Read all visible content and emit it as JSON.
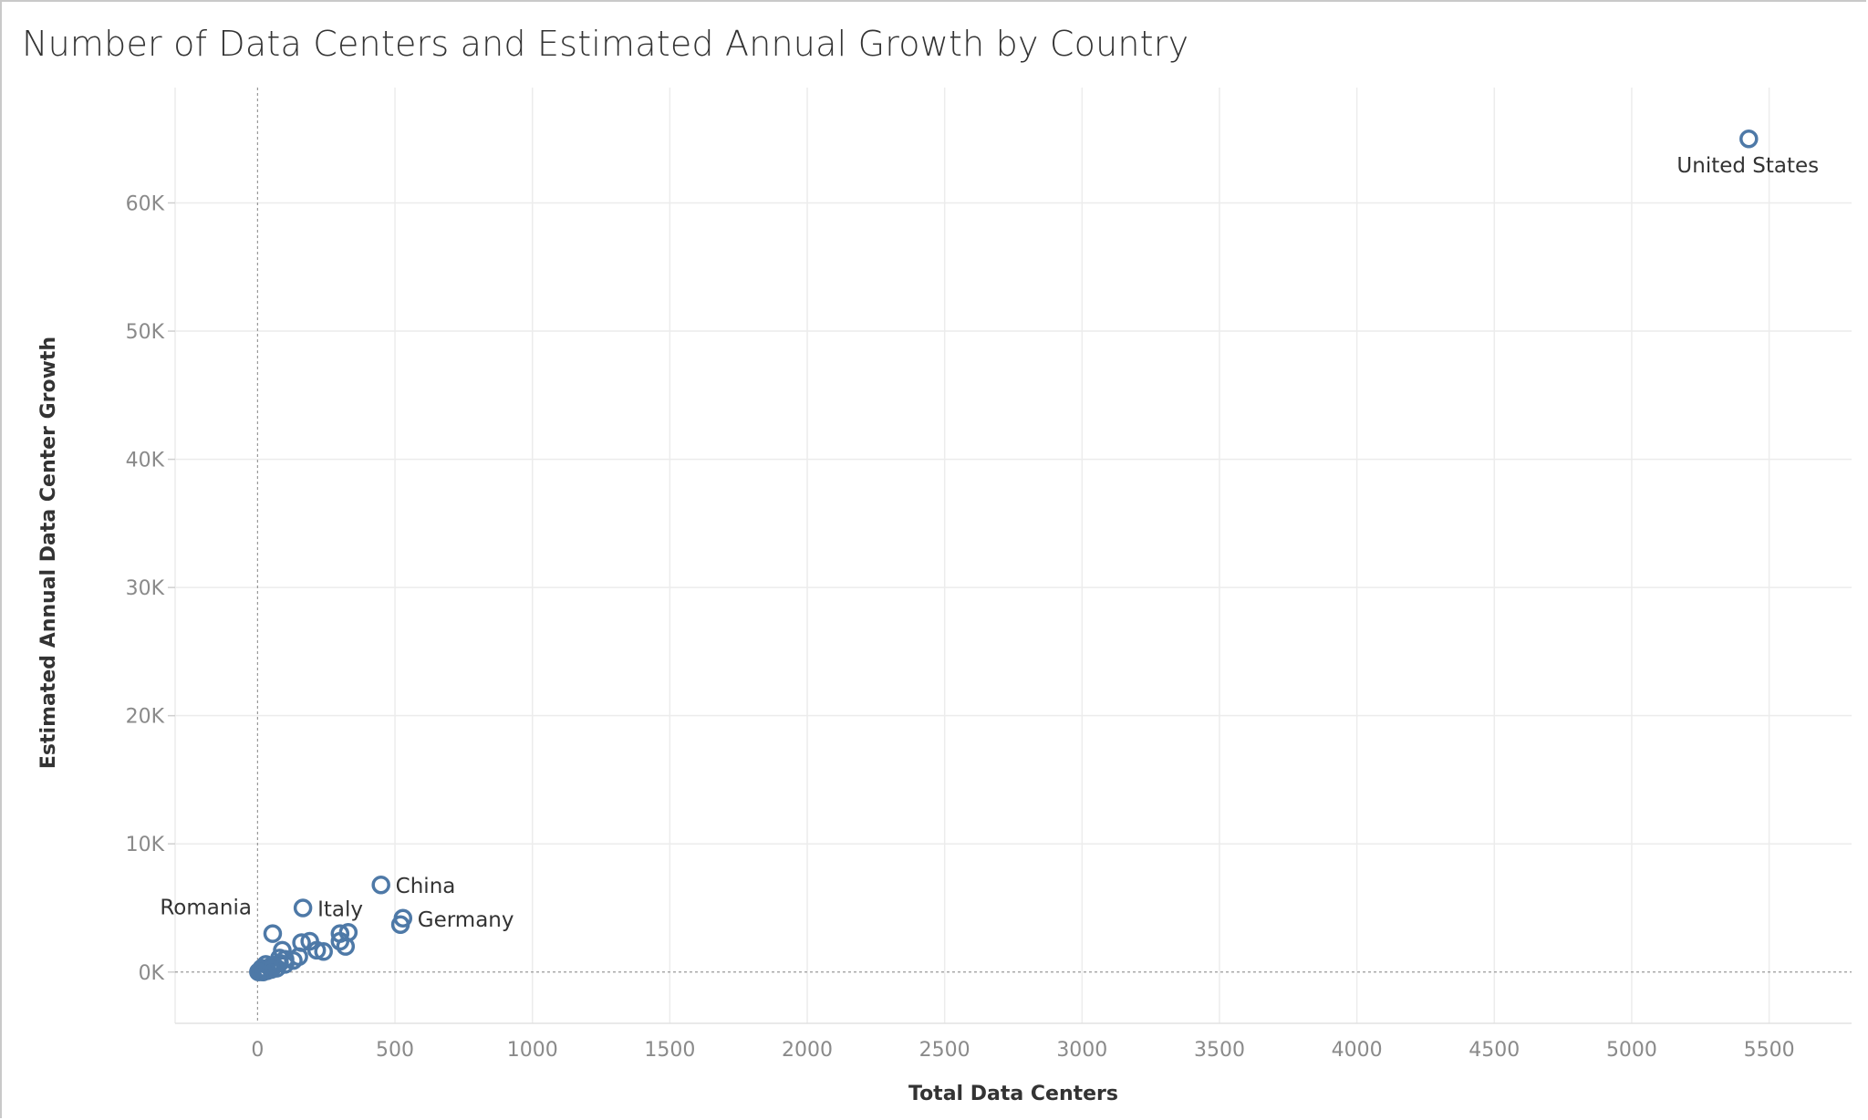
{
  "chart_data": {
    "type": "scatter",
    "title": "Number of Data Centers and Estimated Annual Growth by Country",
    "xlabel": "Total Data Centers",
    "ylabel": "Estimated Annual Data Center Growth",
    "xlim": [
      -300,
      5800
    ],
    "ylim": [
      -4000,
      69000
    ],
    "xticks": [
      0,
      500,
      1000,
      1500,
      2000,
      2500,
      3000,
      3500,
      4000,
      4500,
      5000,
      5500
    ],
    "xtick_labels": [
      "0",
      "500",
      "1000",
      "1500",
      "2000",
      "2500",
      "3000",
      "3500",
      "4000",
      "4500",
      "5000",
      "5500"
    ],
    "yticks": [
      0,
      10000,
      20000,
      30000,
      40000,
      50000,
      60000
    ],
    "ytick_labels": [
      "0K",
      "10K",
      "20K",
      "30K",
      "40K",
      "50K",
      "60K"
    ],
    "grid": true,
    "marker": "open-circle",
    "color": "#4e79a7",
    "points": [
      {
        "x": 5426,
        "y": 65000,
        "label": "United States",
        "label_pos": "below"
      },
      {
        "x": 449,
        "y": 6800,
        "label": "China",
        "label_pos": "right"
      },
      {
        "x": 529,
        "y": 4200,
        "label": "Germany",
        "label_pos": "right"
      },
      {
        "x": 520,
        "y": 3700,
        "label": "",
        "label_pos": ""
      },
      {
        "x": 165,
        "y": 5000,
        "label": "Italy",
        "label_pos": "right"
      },
      {
        "x": 55,
        "y": 3000,
        "label": "Romania",
        "label_pos": "left"
      },
      {
        "x": 330,
        "y": 3100,
        "label": "",
        "label_pos": ""
      },
      {
        "x": 300,
        "y": 3000,
        "label": "",
        "label_pos": ""
      },
      {
        "x": 300,
        "y": 2400,
        "label": "",
        "label_pos": ""
      },
      {
        "x": 320,
        "y": 2000,
        "label": "",
        "label_pos": ""
      },
      {
        "x": 190,
        "y": 2400,
        "label": "",
        "label_pos": ""
      },
      {
        "x": 160,
        "y": 2300,
        "label": "",
        "label_pos": ""
      },
      {
        "x": 240,
        "y": 1600,
        "label": "",
        "label_pos": ""
      },
      {
        "x": 215,
        "y": 1700,
        "label": "",
        "label_pos": ""
      },
      {
        "x": 90,
        "y": 1700,
        "label": "",
        "label_pos": ""
      },
      {
        "x": 150,
        "y": 1200,
        "label": "",
        "label_pos": ""
      },
      {
        "x": 130,
        "y": 900,
        "label": "",
        "label_pos": ""
      },
      {
        "x": 100,
        "y": 1000,
        "label": "",
        "label_pos": ""
      },
      {
        "x": 80,
        "y": 1100,
        "label": "",
        "label_pos": ""
      },
      {
        "x": 100,
        "y": 600,
        "label": "",
        "label_pos": ""
      },
      {
        "x": 80,
        "y": 700,
        "label": "",
        "label_pos": ""
      },
      {
        "x": 60,
        "y": 500,
        "label": "",
        "label_pos": ""
      },
      {
        "x": 70,
        "y": 300,
        "label": "",
        "label_pos": ""
      },
      {
        "x": 45,
        "y": 400,
        "label": "",
        "label_pos": ""
      },
      {
        "x": 30,
        "y": 600,
        "label": "",
        "label_pos": ""
      },
      {
        "x": 25,
        "y": 200,
        "label": "",
        "label_pos": ""
      },
      {
        "x": 15,
        "y": 300,
        "label": "",
        "label_pos": ""
      },
      {
        "x": 10,
        "y": 100,
        "label": "",
        "label_pos": ""
      },
      {
        "x": 5,
        "y": 50,
        "label": "",
        "label_pos": ""
      },
      {
        "x": 20,
        "y": 0,
        "label": "",
        "label_pos": ""
      },
      {
        "x": 35,
        "y": 100,
        "label": "",
        "label_pos": ""
      },
      {
        "x": 50,
        "y": 200,
        "label": "",
        "label_pos": ""
      },
      {
        "x": 8,
        "y": 20,
        "label": "",
        "label_pos": ""
      },
      {
        "x": 3,
        "y": 10,
        "label": "",
        "label_pos": ""
      }
    ]
  }
}
